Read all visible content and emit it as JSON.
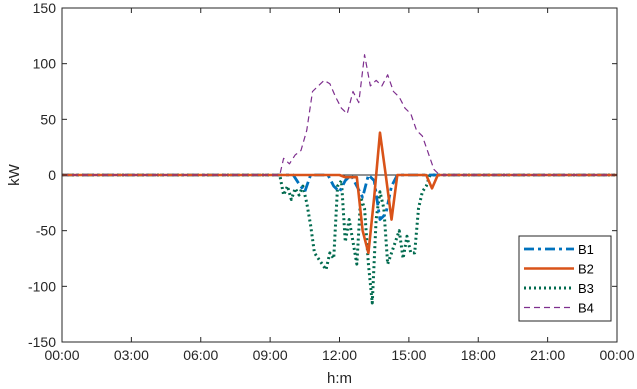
{
  "chart_data": {
    "type": "line",
    "title": "",
    "xlabel": "h:m",
    "ylabel": "kW",
    "xlim": [
      0,
      1440
    ],
    "ylim": [
      -150,
      150
    ],
    "x_tick_values": [
      0,
      180,
      360,
      540,
      720,
      900,
      1080,
      1260,
      1440
    ],
    "x_tick_labels": [
      "00:00",
      "03:00",
      "06:00",
      "09:00",
      "12:00",
      "15:00",
      "18:00",
      "21:00",
      "00:00"
    ],
    "y_tick_values": [
      -150,
      -100,
      -50,
      0,
      50,
      100,
      150
    ],
    "y_tick_labels": [
      "-150",
      "-100",
      "-50",
      "0",
      "50",
      "100",
      "150"
    ],
    "grid": false,
    "legend_position": "bottom-right",
    "series": [
      {
        "name": "B1",
        "color": "#0072bd",
        "dash": "dashdot",
        "x": [
          0,
          560,
          600,
          615,
          630,
          645,
          660,
          690,
          705,
          720,
          735,
          750,
          765,
          780,
          795,
          810,
          825,
          840,
          855,
          870,
          1440
        ],
        "y": [
          0,
          0,
          0,
          -8,
          -15,
          0,
          0,
          0,
          -10,
          -15,
          -5,
          0,
          -10,
          -20,
          0,
          -5,
          -40,
          -35,
          -10,
          0,
          0
        ]
      },
      {
        "name": "B2",
        "color": "#d95319",
        "dash": "solid",
        "x": [
          0,
          690,
          720,
          735,
          765,
          780,
          795,
          810,
          825,
          840,
          855,
          870,
          915,
          945,
          960,
          975,
          1440
        ],
        "y": [
          0,
          0,
          0,
          -2,
          -2,
          -50,
          -70,
          -20,
          38,
          0,
          -40,
          0,
          0,
          0,
          -12,
          0,
          0
        ]
      },
      {
        "name": "B3",
        "color": "#006a4e",
        "dash": "dotted",
        "x": [
          0,
          565,
          575,
          585,
          595,
          605,
          615,
          625,
          635,
          645,
          655,
          665,
          675,
          685,
          695,
          705,
          715,
          725,
          735,
          745,
          755,
          765,
          775,
          785,
          795,
          805,
          815,
          825,
          835,
          845,
          855,
          865,
          875,
          885,
          895,
          905,
          915,
          925,
          935,
          945,
          955,
          965,
          1440
        ],
        "y": [
          0,
          0,
          -18,
          -10,
          -22,
          -12,
          -18,
          -10,
          -25,
          -45,
          -70,
          -75,
          -80,
          -85,
          -70,
          -75,
          -10,
          -5,
          -60,
          -40,
          -60,
          -80,
          -20,
          -30,
          -80,
          -115,
          -40,
          -15,
          -30,
          -80,
          -70,
          -60,
          -50,
          -75,
          -55,
          -70,
          -70,
          -30,
          -15,
          -10,
          0,
          0,
          0
        ]
      },
      {
        "name": "B4",
        "color": "#7e2f8e",
        "dash": "dashed",
        "x": [
          0,
          565,
          575,
          590,
          605,
          620,
          635,
          650,
          665,
          680,
          695,
          710,
          725,
          740,
          755,
          770,
          785,
          800,
          815,
          830,
          845,
          860,
          875,
          890,
          905,
          920,
          935,
          950,
          965,
          980,
          1440
        ],
        "y": [
          0,
          0,
          15,
          10,
          18,
          22,
          40,
          75,
          80,
          85,
          82,
          70,
          60,
          55,
          75,
          65,
          108,
          80,
          85,
          80,
          90,
          75,
          70,
          60,
          55,
          40,
          35,
          20,
          5,
          0,
          0
        ]
      }
    ]
  }
}
